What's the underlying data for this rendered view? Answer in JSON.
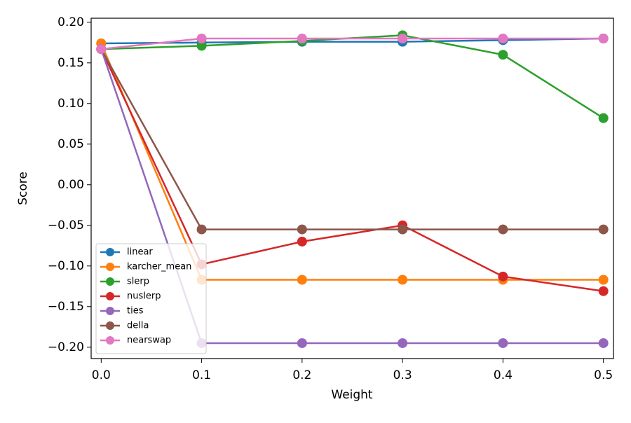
{
  "chart_data": {
    "type": "line",
    "x_label": "Weight",
    "y_label": "Score",
    "x": [
      0,
      0.1,
      0.2,
      0.3,
      0.4,
      0.5
    ],
    "series": [
      {
        "name": "linear",
        "color": "#1f77b4",
        "values": [
          0.174,
          0.175,
          0.176,
          0.176,
          0.178,
          0.18
        ]
      },
      {
        "name": "karcher_mean",
        "color": "#ff7f0e",
        "values": [
          0.174,
          -0.117,
          -0.117,
          -0.117,
          -0.117,
          -0.117
        ]
      },
      {
        "name": "slerp",
        "color": "#2ca02c",
        "values": [
          0.167,
          0.171,
          0.177,
          0.184,
          0.16,
          0.082
        ]
      },
      {
        "name": "nuslerp",
        "color": "#d62728",
        "values": [
          0.167,
          -0.098,
          -0.07,
          -0.05,
          -0.113,
          -0.131
        ]
      },
      {
        "name": "ties",
        "color": "#9467bd",
        "values": [
          0.167,
          -0.195,
          -0.195,
          -0.195,
          -0.195,
          -0.195
        ]
      },
      {
        "name": "della",
        "color": "#8c564b",
        "values": [
          0.167,
          -0.055,
          -0.055,
          -0.055,
          -0.055,
          -0.055
        ]
      },
      {
        "name": "nearswap",
        "color": "#e377c2",
        "values": [
          0.167,
          0.18,
          0.18,
          0.18,
          0.18,
          0.18
        ]
      }
    ],
    "xlim": [
      -0.01,
      0.51
    ],
    "ylim": [
      -0.214,
      0.205
    ],
    "xticks": [
      {
        "value": 0,
        "label": "0.0"
      },
      {
        "value": 0.1,
        "label": "0.1"
      },
      {
        "value": 0.2,
        "label": "0.2"
      },
      {
        "value": 0.3,
        "label": "0.3"
      },
      {
        "value": 0.4,
        "label": "0.4"
      },
      {
        "value": 0.5,
        "label": "0.5"
      }
    ],
    "yticks": [
      {
        "value": 0.2,
        "label": "0.20"
      },
      {
        "value": 0.15,
        "label": "0.15"
      },
      {
        "value": 0.1,
        "label": "0.10"
      },
      {
        "value": 0.05,
        "label": "0.05"
      },
      {
        "value": 0,
        "label": "0.00"
      },
      {
        "value": -0.05,
        "label": "−0.05"
      },
      {
        "value": -0.1,
        "label": "−0.10"
      },
      {
        "value": -0.15,
        "label": "−0.15"
      },
      {
        "value": -0.2,
        "label": "−0.20"
      }
    ],
    "grid": false,
    "legend_position": "lower left"
  }
}
